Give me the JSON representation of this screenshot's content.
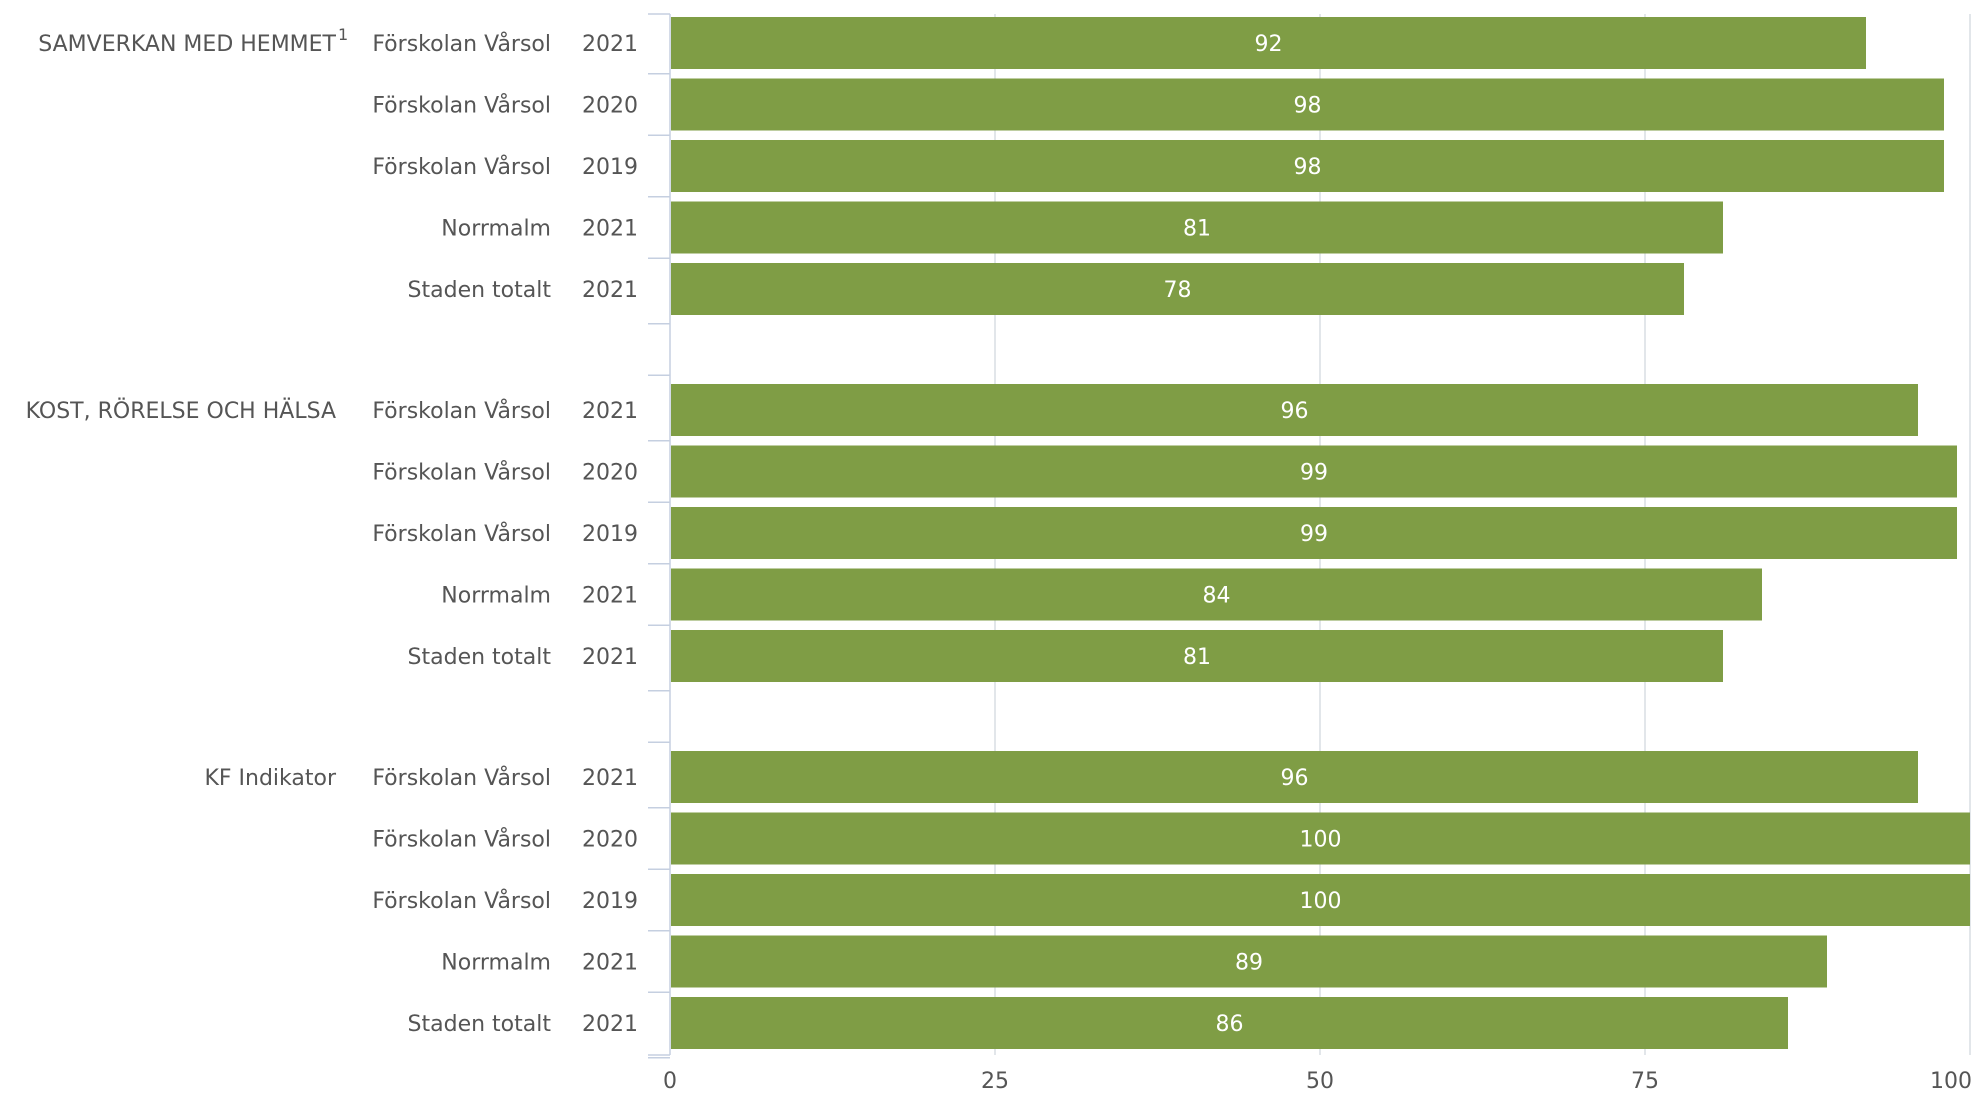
{
  "chart_data": {
    "type": "bar",
    "orientation": "horizontal",
    "xlim": [
      0,
      100
    ],
    "x_ticks": [
      0,
      25,
      50,
      75,
      100
    ],
    "grid": true,
    "bar_color": "#7f9d45",
    "label_color": "#ffffff",
    "text_color": "#555555",
    "axis_color": "#c5cfe0",
    "grid_color": "#d8dde3",
    "groups": [
      {
        "label": "SAMVERKAN MED HEMMET",
        "footnote": "1",
        "rows": [
          {
            "name": "Förskolan Vårsol",
            "year": "2021",
            "value": 92
          },
          {
            "name": "Förskolan Vårsol",
            "year": "2020",
            "value": 98
          },
          {
            "name": "Förskolan Vårsol",
            "year": "2019",
            "value": 98
          },
          {
            "name": "Norrmalm",
            "year": "2021",
            "value": 81
          },
          {
            "name": "Staden totalt",
            "year": "2021",
            "value": 78
          }
        ]
      },
      {
        "label": "KOST, RÖRELSE OCH HÄLSA",
        "footnote": "",
        "rows": [
          {
            "name": "Förskolan Vårsol",
            "year": "2021",
            "value": 96
          },
          {
            "name": "Förskolan Vårsol",
            "year": "2020",
            "value": 99
          },
          {
            "name": "Förskolan Vårsol",
            "year": "2019",
            "value": 99
          },
          {
            "name": "Norrmalm",
            "year": "2021",
            "value": 84
          },
          {
            "name": "Staden totalt",
            "year": "2021",
            "value": 81
          }
        ]
      },
      {
        "label": "KF Indikator",
        "footnote": "",
        "rows": [
          {
            "name": "Förskolan Vårsol",
            "year": "2021",
            "value": 96
          },
          {
            "name": "Förskolan Vårsol",
            "year": "2020",
            "value": 100
          },
          {
            "name": "Förskolan Vårsol",
            "year": "2019",
            "value": 100
          },
          {
            "name": "Norrmalm",
            "year": "2021",
            "value": 89
          },
          {
            "name": "Staden totalt",
            "year": "2021",
            "value": 86
          }
        ]
      }
    ]
  }
}
